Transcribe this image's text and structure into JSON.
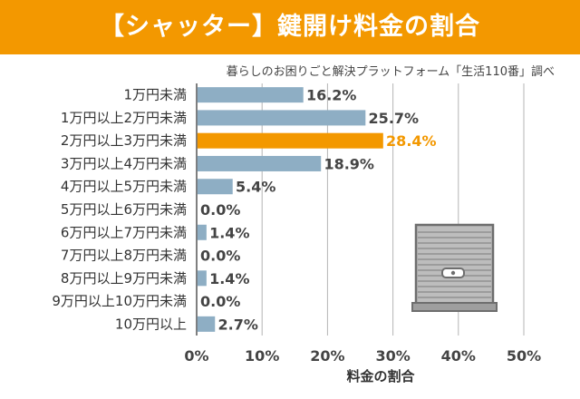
{
  "title": "【シャッター】鍵開け料金の割合",
  "source": "暮らしのお困りごと解決プラットフォーム「生活110番」調べ",
  "colors": {
    "accent": "#f39800",
    "bar": "#8eaec4",
    "highlight": "#f39800",
    "title_text": "#ffffff"
  },
  "chart_data": {
    "type": "bar",
    "orientation": "horizontal",
    "categories": [
      "1万円未満",
      "1万円以上2万円未満",
      "2万円以上3万円未満",
      "3万円以上4万円未満",
      "4万円以上5万円未満",
      "5万円以上6万円未満",
      "6万円以上7万円未満",
      "7万円以上8万円未満",
      "8万円以上9万円未満",
      "9万円以上10万円未満",
      "10万円以上"
    ],
    "values": [
      16.2,
      25.7,
      28.4,
      18.9,
      5.4,
      0.0,
      1.4,
      0.0,
      1.4,
      0.0,
      2.7
    ],
    "value_labels": [
      "16.2%",
      "25.7%",
      "28.4%",
      "18.9%",
      "5.4%",
      "0.0%",
      "1.4%",
      "0.0%",
      "1.4%",
      "0.0%",
      "2.7%"
    ],
    "highlight_index": 2,
    "xlim": [
      0,
      50
    ],
    "xticks": [
      0,
      10,
      20,
      30,
      40,
      50
    ],
    "xtick_labels": [
      "0%",
      "10%",
      "20%",
      "30%",
      "40%",
      "50%"
    ],
    "xlabel": "料金の割合",
    "ylabel": "",
    "grid": "vertical"
  },
  "illustration": {
    "icon": "shutter-icon"
  }
}
